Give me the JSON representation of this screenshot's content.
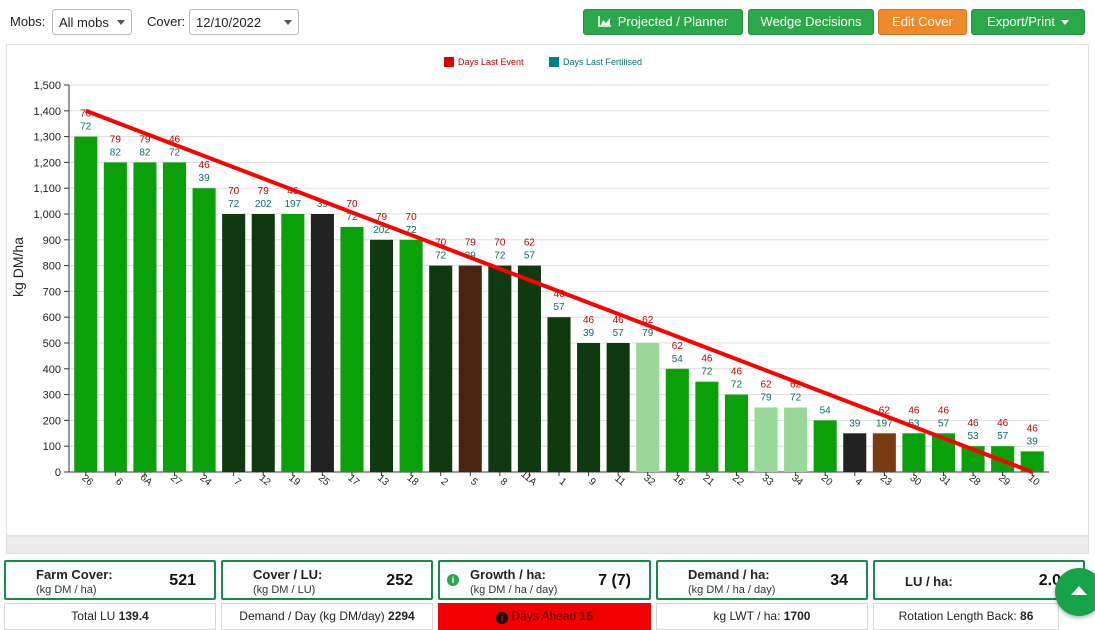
{
  "toolbar": {
    "mobs_label": "Mobs:",
    "mobs_value": "All mobs",
    "cover_label": "Cover:",
    "cover_value": "12/10/2022",
    "btn_projected": "Projected / Planner",
    "btn_wedge": "Wedge Decisions",
    "btn_edit": "Edit Cover",
    "btn_export": "Export/Print",
    "colors": {
      "green": "#2aa84a",
      "orange": "#f0892a"
    }
  },
  "chart_data": {
    "type": "bar",
    "ylabel": "kg DM/ha",
    "ylim": [
      0,
      1500
    ],
    "yticks": [
      "0",
      "100",
      "200",
      "300",
      "400",
      "500",
      "600",
      "700",
      "800",
      "900",
      "1,000",
      "1,100",
      "1,200",
      "1,300",
      "1,400",
      "1,500"
    ],
    "legend": [
      {
        "name": "Days Last Event",
        "color": "#e00000"
      },
      {
        "name": "Days Last Fertilised",
        "color": "#008080"
      }
    ],
    "target_line": {
      "from": 1400,
      "to": 0,
      "color": "#ff0000"
    },
    "categories": [
      "26",
      "6",
      "6A",
      "27",
      "24",
      "7",
      "12",
      "19",
      "25",
      "17",
      "13",
      "18",
      "2",
      "5",
      "8",
      "11A",
      "1",
      "9",
      "11",
      "32",
      "16",
      "21",
      "22",
      "33",
      "34",
      "20",
      "4",
      "23",
      "30",
      "31",
      "28",
      "29",
      "10"
    ],
    "values": [
      1300,
      1200,
      1200,
      1200,
      1100,
      1000,
      1000,
      1000,
      1000,
      950,
      900,
      900,
      800,
      800,
      800,
      800,
      600,
      500,
      500,
      500,
      400,
      350,
      300,
      250,
      250,
      200,
      150,
      150,
      150,
      150,
      100,
      100,
      80
    ],
    "days_last_event": [
      "70",
      "79",
      "79",
      "46",
      "46",
      "70",
      "79",
      "46",
      "",
      "70",
      "79",
      "70",
      "70",
      "79",
      "70",
      "62",
      "46",
      "46",
      "46",
      "62",
      "62",
      "46",
      "46",
      "62",
      "62",
      "",
      "",
      "62",
      "46",
      "46",
      "46",
      "46",
      "46"
    ],
    "days_last_fertilised": [
      "72",
      "82",
      "82",
      "72",
      "39",
      "72",
      "202",
      "197",
      "39",
      "72",
      "202",
      "72",
      "72",
      "39",
      "72",
      "57",
      "57",
      "39",
      "57",
      "79",
      "54",
      "72",
      "72",
      "79",
      "72",
      "54",
      "39",
      "197",
      "53",
      "57",
      "53",
      "57",
      "39"
    ],
    "bar_colors": [
      "#0aa00a",
      "#0aa00a",
      "#0aa00a",
      "#0aa00a",
      "#0aa00a",
      "#0f3a0f",
      "#0f3a0f",
      "#0aa00a",
      "#222222",
      "#0aa00a",
      "#0f3a0f",
      "#0aa00a",
      "#0f3a0f",
      "#4a2410",
      "#0f3a0f",
      "#0f3a0f",
      "#0f3a0f",
      "#0f3a0f",
      "#0f3a0f",
      "#98d898",
      "#0aa00a",
      "#0aa00a",
      "#0aa00a",
      "#98d898",
      "#98d898",
      "#0aa00a",
      "#222222",
      "#7a3b12",
      "#0aa00a",
      "#0aa00a",
      "#0aa00a",
      "#0aa00a",
      "#0aa00a"
    ]
  },
  "cards": {
    "farm_cover": {
      "title": "Farm Cover:",
      "sub": "(kg DM / ha)",
      "value": "521"
    },
    "cover_lu": {
      "title": "Cover / LU:",
      "sub": "(kg DM / LU)",
      "value": "252"
    },
    "growth": {
      "title": "Growth / ha:",
      "sub": "(kg DM / ha / day)",
      "value": "7 (7)"
    },
    "demand": {
      "title": "Demand / ha:",
      "sub": "(kg DM / ha / day)",
      "value": "34"
    },
    "lu_ha": {
      "title": "LU / ha:",
      "value": "2.0"
    }
  },
  "footer": {
    "total_lu_label": "Total LU",
    "total_lu_value": "139.4",
    "demand_day_label": "Demand / Day (kg DM/day)",
    "demand_day_value": "2294",
    "days_ahead_label": "Days Ahead",
    "days_ahead_value": "15",
    "lwt_label": "kg LWT / ha:",
    "lwt_value": "1700",
    "rotation_label": "Rotation Length Back:",
    "rotation_value": "86"
  }
}
